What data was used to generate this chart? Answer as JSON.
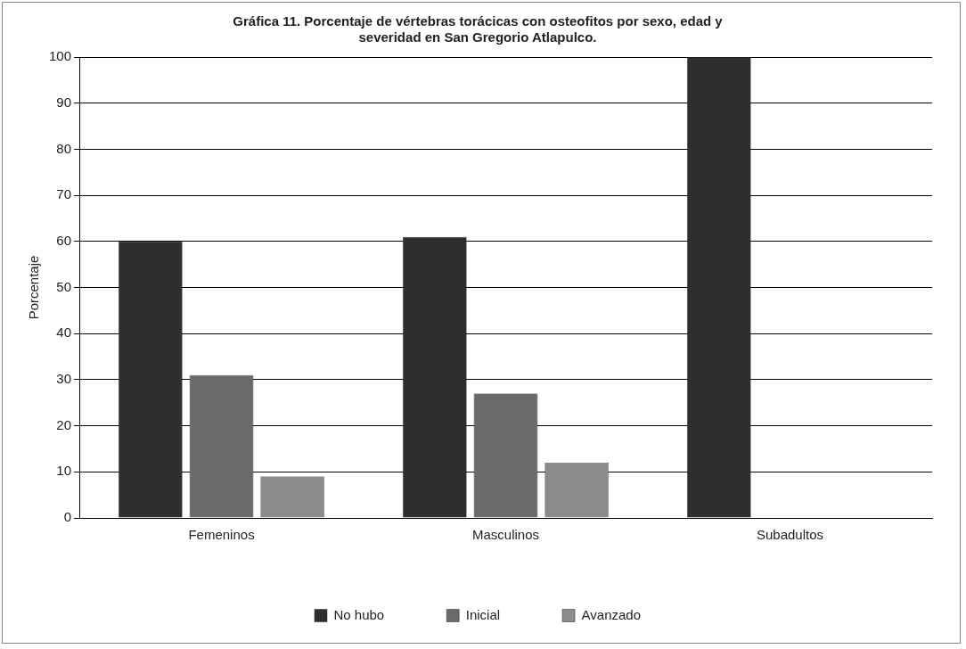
{
  "chart_data": {
    "type": "bar",
    "title": "Gráfica 11. Porcentaje de vértebras torácicas con osteofitos por sexo, edad y severidad en San Gregorio Atlapulco.",
    "ylabel": "Porcentaje",
    "categories": [
      "Femeninos",
      "Masculinos",
      "Subadultos"
    ],
    "series": [
      {
        "name": "No hubo",
        "color": "#2e2e2e",
        "values": [
          60,
          61,
          100
        ]
      },
      {
        "name": "Inicial",
        "color": "#6a6a6a",
        "values": [
          31,
          27,
          0
        ]
      },
      {
        "name": "Avanzado",
        "color": "#8c8c8c",
        "values": [
          9,
          12,
          0
        ]
      }
    ],
    "ylim": [
      0,
      100
    ],
    "yticks": [
      0,
      10,
      20,
      30,
      40,
      50,
      60,
      70,
      80,
      90,
      100
    ],
    "grid": "y",
    "legend": "bottom"
  }
}
